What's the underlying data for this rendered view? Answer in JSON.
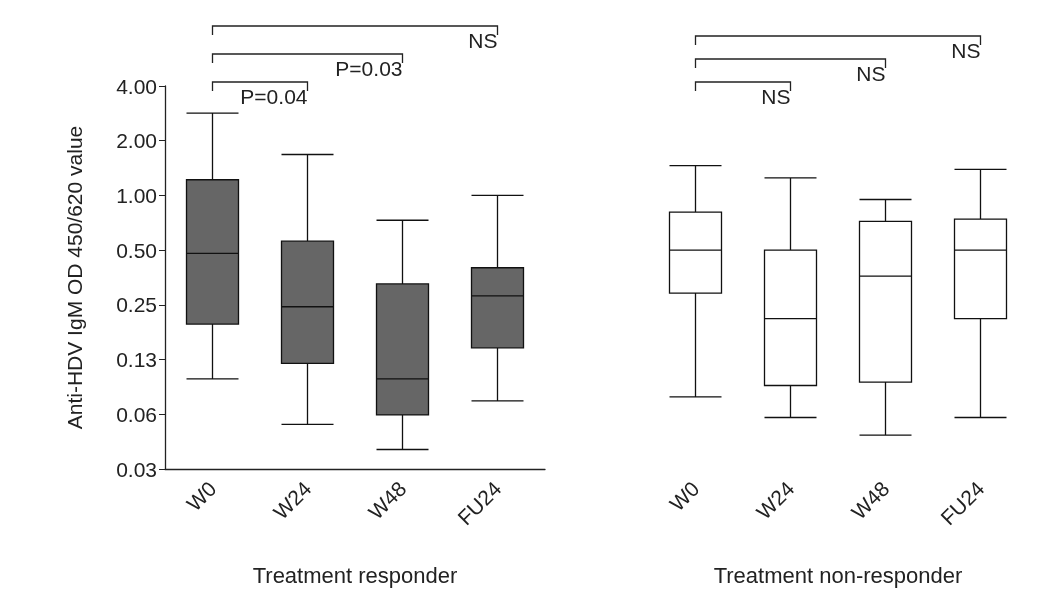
{
  "chart_data": [
    {
      "type": "box",
      "ylabel": "Anti-HDV IgM OD 450/620 value",
      "xlabel": "Treatment responder",
      "categories": [
        "W0",
        "W24",
        "W48",
        "FU24"
      ],
      "color": "#666666",
      "log": true,
      "ylim": [
        0.03125,
        4
      ],
      "yticks": [
        {
          "value": 0.03125,
          "label": "0.03"
        },
        {
          "value": 0.0625,
          "label": "0.06"
        },
        {
          "value": 0.125,
          "label": "0.13"
        },
        {
          "value": 0.25,
          "label": "0.25"
        },
        {
          "value": 0.5,
          "label": "0.50"
        },
        {
          "value": 1,
          "label": "1.00"
        },
        {
          "value": 2,
          "label": "2.00"
        },
        {
          "value": 4,
          "label": "4.00"
        }
      ],
      "boxes": [
        {
          "low": 0.098,
          "q1": 0.196,
          "median": 0.48,
          "q3": 1.22,
          "high": 2.84
        },
        {
          "low": 0.055,
          "q1": 0.119,
          "median": 0.244,
          "q3": 0.56,
          "high": 1.68
        },
        {
          "low": 0.04,
          "q1": 0.062,
          "median": 0.098,
          "q3": 0.326,
          "high": 0.73
        },
        {
          "low": 0.074,
          "q1": 0.145,
          "median": 0.28,
          "q3": 0.4,
          "high": 1.0
        }
      ],
      "annotations": [
        "P=0.04",
        "P=0.03",
        "NS"
      ]
    },
    {
      "type": "box",
      "xlabel": "Treatment non-responder",
      "categories": [
        "W0",
        "W24",
        "W48",
        "FU24"
      ],
      "color": "#ffffff",
      "log": true,
      "tick_labels": "x",
      "ylim": [
        0.03125,
        4
      ],
      "boxes": [
        {
          "low": 0.078,
          "q1": 0.29,
          "median": 0.5,
          "q3": 0.81,
          "high": 1.46
        },
        {
          "low": 0.06,
          "q1": 0.09,
          "median": 0.21,
          "q3": 0.5,
          "high": 1.25
        },
        {
          "low": 0.048,
          "q1": 0.094,
          "median": 0.36,
          "q3": 0.72,
          "high": 0.95
        },
        {
          "low": 0.06,
          "q1": 0.21,
          "median": 0.5,
          "q3": 0.74,
          "high": 1.39
        }
      ],
      "annotations": [
        "NS",
        "NS",
        "NS"
      ]
    }
  ]
}
